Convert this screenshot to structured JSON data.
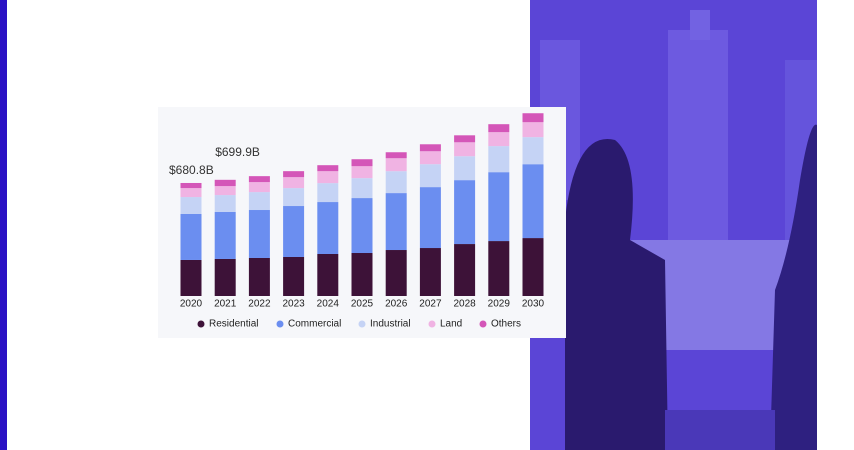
{
  "chart_data": {
    "type": "stacked-bar",
    "categories": [
      "2020",
      "2021",
      "2022",
      "2023",
      "2024",
      "2025",
      "2026",
      "2027",
      "2028",
      "2029",
      "2030"
    ],
    "series": [
      {
        "name": "Residential",
        "color": "#3d1238",
        "values": [
          217,
          223,
          229,
          235,
          253,
          259,
          277,
          289,
          313,
          331,
          349
        ]
      },
      {
        "name": "Commercial",
        "color": "#6b8ef0",
        "values": [
          277,
          283,
          289,
          307,
          313,
          331,
          343,
          367,
          385,
          415,
          445
        ]
      },
      {
        "name": "Industrial",
        "color": "#c5d3f5",
        "values": [
          102,
          102,
          108,
          108,
          114,
          120,
          132,
          138,
          144,
          157,
          163
        ]
      },
      {
        "name": "Land",
        "color": "#f0b3e3",
        "values": [
          54,
          54,
          60,
          66,
          72,
          72,
          78,
          78,
          84,
          84,
          90
        ]
      },
      {
        "name": "Others",
        "color": "#d456b8",
        "values": [
          30.8,
          37.9,
          36,
          36,
          36,
          42,
          36,
          42,
          42,
          48,
          54
        ]
      }
    ],
    "annotations": [
      {
        "category": "2020",
        "text": "$680.8B"
      },
      {
        "category": "2021",
        "text": "$699.9B"
      }
    ]
  }
}
